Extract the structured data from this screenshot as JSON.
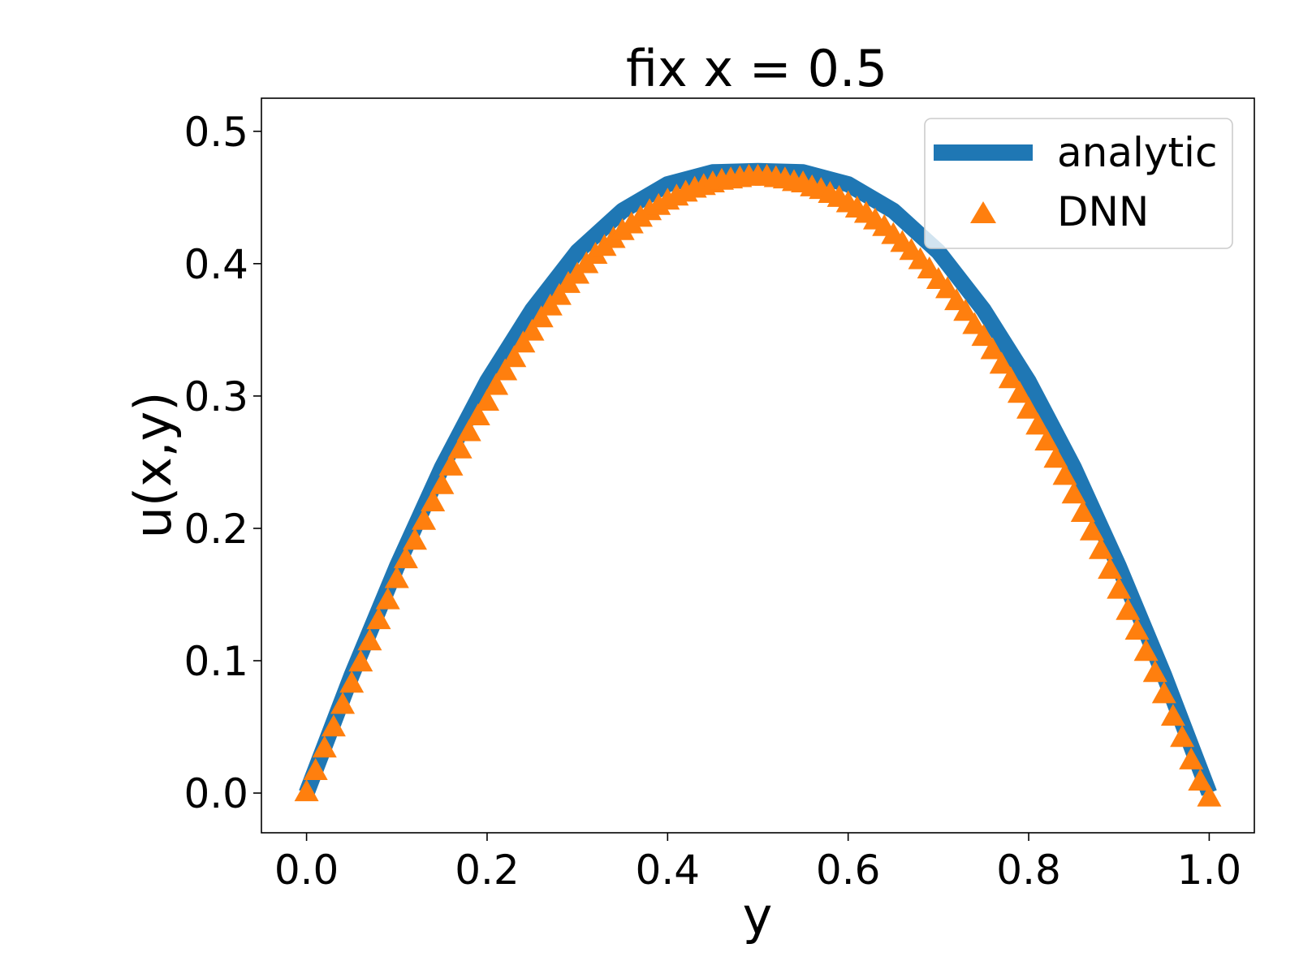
{
  "chart_data": {
    "type": "line",
    "title": "fix x = 0.5",
    "xlabel": "y",
    "ylabel": "u(x,y)",
    "xlim": [
      -0.05,
      1.05
    ],
    "ylim": [
      -0.03,
      0.525
    ],
    "xticks": [
      {
        "value": 0.0,
        "label": "0.0"
      },
      {
        "value": 0.2,
        "label": "0.2"
      },
      {
        "value": 0.4,
        "label": "0.4"
      },
      {
        "value": 0.6,
        "label": "0.6"
      },
      {
        "value": 0.8,
        "label": "0.8"
      },
      {
        "value": 1.0,
        "label": "1.0"
      }
    ],
    "yticks": [
      {
        "value": 0.0,
        "label": "0.0"
      },
      {
        "value": 0.1,
        "label": "0.1"
      },
      {
        "value": 0.2,
        "label": "0.2"
      },
      {
        "value": 0.3,
        "label": "0.3"
      },
      {
        "value": 0.4,
        "label": "0.4"
      },
      {
        "value": 0.5,
        "label": "0.5"
      }
    ],
    "grid": false,
    "legend": "top-right",
    "series": [
      {
        "name": "analytic",
        "style": "line",
        "color": "#1f77b4",
        "x": [
          0.0,
          0.05,
          0.1,
          0.15,
          0.2,
          0.25,
          0.3,
          0.35,
          0.4,
          0.45,
          0.5,
          0.55,
          0.6,
          0.65,
          0.7,
          0.75,
          0.8,
          0.85,
          0.9,
          0.95,
          1.0
        ],
        "y": [
          0.0,
          0.089,
          0.171,
          0.246,
          0.311,
          0.365,
          0.409,
          0.44,
          0.46,
          0.469,
          0.47,
          0.469,
          0.46,
          0.44,
          0.409,
          0.365,
          0.311,
          0.246,
          0.171,
          0.089,
          0.0
        ]
      },
      {
        "name": "DNN",
        "style": "markers",
        "marker": "triangle-up",
        "color": "#ff7f0e",
        "x": [
          0.0,
          0.01,
          0.02,
          0.03,
          0.04,
          0.05,
          0.06,
          0.07,
          0.08,
          0.09,
          0.1,
          0.11,
          0.12,
          0.13,
          0.14,
          0.15,
          0.16,
          0.17,
          0.18,
          0.19,
          0.2,
          0.21,
          0.22,
          0.23,
          0.24,
          0.25,
          0.26,
          0.27,
          0.28,
          0.29,
          0.3,
          0.31,
          0.32,
          0.33,
          0.34,
          0.35,
          0.36,
          0.37,
          0.38,
          0.39,
          0.4,
          0.41,
          0.42,
          0.43,
          0.44,
          0.45,
          0.46,
          0.47,
          0.48,
          0.49,
          0.5,
          0.51,
          0.52,
          0.53,
          0.54,
          0.55,
          0.56,
          0.57,
          0.58,
          0.59,
          0.6,
          0.61,
          0.62,
          0.63,
          0.64,
          0.65,
          0.66,
          0.67,
          0.68,
          0.69,
          0.7,
          0.71,
          0.72,
          0.73,
          0.74,
          0.75,
          0.76,
          0.77,
          0.78,
          0.79,
          0.8,
          0.81,
          0.82,
          0.83,
          0.84,
          0.85,
          0.86,
          0.87,
          0.88,
          0.89,
          0.9,
          0.91,
          0.92,
          0.93,
          0.94,
          0.95,
          0.96,
          0.97,
          0.98,
          0.99,
          1.0
        ],
        "y": [
          0.0,
          0.016,
          0.033,
          0.049,
          0.066,
          0.082,
          0.098,
          0.114,
          0.13,
          0.145,
          0.161,
          0.176,
          0.19,
          0.205,
          0.219,
          0.232,
          0.246,
          0.259,
          0.272,
          0.284,
          0.295,
          0.307,
          0.318,
          0.328,
          0.339,
          0.348,
          0.358,
          0.367,
          0.375,
          0.384,
          0.391,
          0.399,
          0.406,
          0.412,
          0.418,
          0.424,
          0.429,
          0.434,
          0.439,
          0.443,
          0.447,
          0.45,
          0.453,
          0.456,
          0.458,
          0.46,
          0.462,
          0.463,
          0.464,
          0.465,
          0.465,
          0.465,
          0.464,
          0.463,
          0.461,
          0.46,
          0.457,
          0.455,
          0.452,
          0.449,
          0.445,
          0.441,
          0.437,
          0.432,
          0.427,
          0.421,
          0.415,
          0.409,
          0.402,
          0.395,
          0.387,
          0.38,
          0.371,
          0.363,
          0.353,
          0.344,
          0.334,
          0.323,
          0.312,
          0.301,
          0.289,
          0.277,
          0.265,
          0.252,
          0.239,
          0.225,
          0.211,
          0.197,
          0.183,
          0.168,
          0.153,
          0.137,
          0.122,
          0.106,
          0.09,
          0.074,
          0.057,
          0.041,
          0.024,
          0.008,
          -0.004
        ]
      }
    ]
  }
}
